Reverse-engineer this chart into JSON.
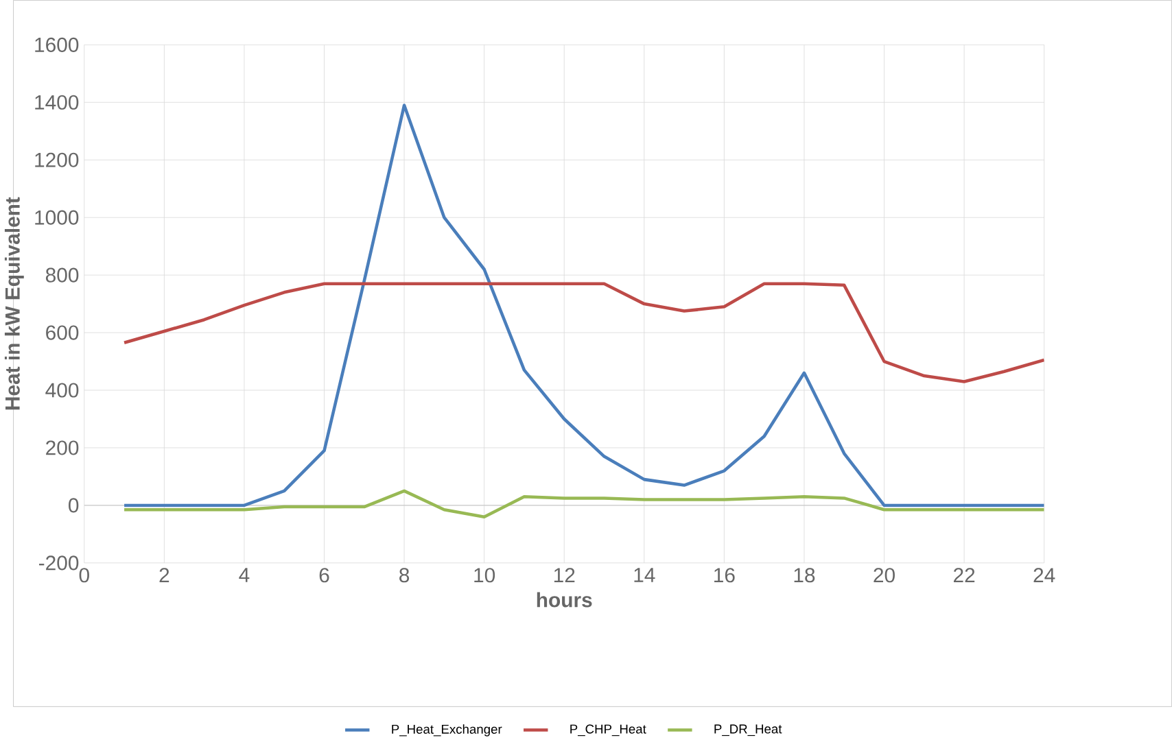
{
  "chart_data": {
    "type": "line",
    "xlabel": "hours",
    "ylabel": "Heat in kW Equivalent",
    "x": [
      1,
      2,
      3,
      4,
      5,
      6,
      7,
      8,
      9,
      10,
      11,
      12,
      13,
      14,
      15,
      16,
      17,
      18,
      19,
      20,
      21,
      22,
      23,
      24
    ],
    "series": [
      {
        "name": "P_Heat_Exchanger",
        "color": "#4a7ebb",
        "values": [
          0,
          0,
          0,
          0,
          50,
          190,
          780,
          1390,
          1000,
          820,
          470,
          300,
          170,
          90,
          70,
          120,
          240,
          460,
          180,
          0,
          0,
          0,
          0,
          0
        ]
      },
      {
        "name": "P_CHP_Heat",
        "color": "#be4b48",
        "values": [
          565,
          605,
          645,
          695,
          740,
          770,
          770,
          770,
          770,
          770,
          770,
          770,
          770,
          700,
          675,
          690,
          770,
          770,
          765,
          500,
          450,
          430,
          465,
          505
        ]
      },
      {
        "name": "P_DR_Heat",
        "color": "#98b954",
        "values": [
          -15,
          -15,
          -15,
          -15,
          -5,
          -5,
          -5,
          50,
          -15,
          -40,
          30,
          25,
          25,
          20,
          20,
          20,
          25,
          30,
          25,
          -15,
          -15,
          -15,
          -15,
          -15
        ]
      }
    ],
    "xlim": [
      0,
      24
    ],
    "xticks": [
      0,
      2,
      4,
      6,
      8,
      10,
      12,
      14,
      16,
      18,
      20,
      22,
      24
    ],
    "ylim": [
      -200,
      1600
    ],
    "yticks": [
      -200,
      0,
      200,
      400,
      600,
      800,
      1000,
      1200,
      1400,
      1600
    ],
    "grid": true,
    "legend": "bottom",
    "marker": "none",
    "line_style": "solid"
  }
}
